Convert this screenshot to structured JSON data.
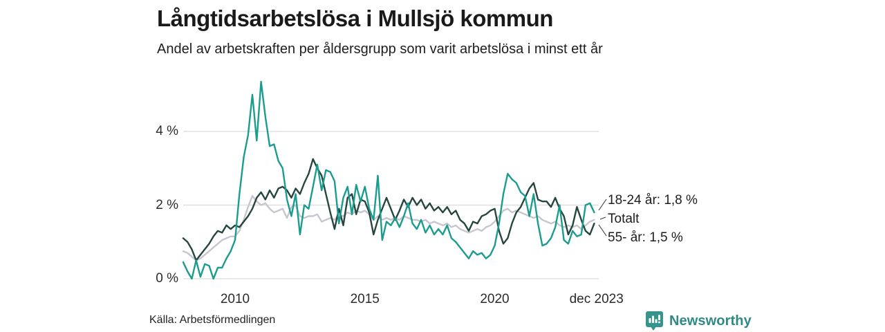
{
  "header": {
    "title": "Långtidsarbetslösa i Mullsjö kommun",
    "subtitle": "Andel av arbetskraften per åldersgrupp som varit arbetslösa i minst ett år"
  },
  "footer": {
    "source": "Källa: Arbetsförmedlingen",
    "brand": "Newsworthy"
  },
  "colors": {
    "series_18_24": "#1a9c8e",
    "series_55": "#26453e",
    "series_total": "#c7c6cf",
    "gridline": "#dadada",
    "brand_teal": "#2e8a85",
    "logo_teal": "#37948c"
  },
  "chart_data": {
    "type": "line",
    "title": "Långtidsarbetslösa i Mullsjö kommun",
    "subtitle": "Andel av arbetskraften per åldersgrupp som varit arbetslösa i minst ett år",
    "x_start": 2008.0,
    "x_step_years": 0.16667,
    "x_end_label": "dec 2023",
    "ylim": [
      0,
      5.6
    ],
    "grid": "horizontal",
    "x_axis": {
      "ticks": [
        {
          "label": "2010",
          "year": 2010
        },
        {
          "label": "2015",
          "year": 2015
        },
        {
          "label": "2020",
          "year": 2020
        },
        {
          "label": "dec 2023",
          "year": 2023.92
        }
      ]
    },
    "y_axis": {
      "ticks": [
        {
          "label": "0 %",
          "value": 0
        },
        {
          "label": "2 %",
          "value": 2
        },
        {
          "label": "4 %",
          "value": 4
        }
      ]
    },
    "series": [
      {
        "name": "18-24 år",
        "end_label": "18-24 år: 1,8 %",
        "end_value_text": "1,8 %",
        "color": "#1a9c8e",
        "values": [
          0.45,
          0.2,
          0.0,
          0.5,
          0.05,
          0.4,
          0.35,
          0.0,
          0.3,
          0.3,
          0.55,
          0.75,
          1.05,
          2.3,
          3.3,
          3.9,
          5.0,
          3.75,
          5.35,
          4.4,
          3.6,
          3.65,
          3.2,
          3.0,
          2.15,
          1.7,
          2.3,
          1.2,
          2.0,
          1.9,
          2.5,
          3.1,
          2.4,
          2.95,
          2.9,
          2.65,
          1.5,
          2.2,
          2.5,
          1.75,
          2.55,
          2.1,
          2.5,
          1.9,
          1.6,
          2.8,
          1.05,
          1.55,
          1.45,
          1.65,
          1.4,
          1.7,
          2.05,
          1.5,
          1.35,
          1.6,
          1.25,
          1.45,
          1.2,
          1.35,
          1.2,
          1.45,
          1.1,
          1.0,
          0.85,
          0.7,
          0.55,
          0.75,
          0.65,
          0.7,
          0.55,
          0.65,
          0.9,
          1.5,
          2.3,
          2.85,
          2.7,
          2.6,
          2.35,
          2.25,
          1.7,
          2.3,
          1.5,
          0.9,
          0.95,
          1.1,
          1.4,
          2.0,
          1.05,
          0.95,
          1.3,
          1.15,
          1.2,
          2.0,
          2.05,
          1.8
        ]
      },
      {
        "name": "Totalt",
        "end_label": "Totalt",
        "end_value_text": "",
        "color": "#c7c6cf",
        "values": [
          0.75,
          0.7,
          0.6,
          0.5,
          0.55,
          0.65,
          0.75,
          0.85,
          0.95,
          1.05,
          1.1,
          1.15,
          1.15,
          1.3,
          1.6,
          1.95,
          2.25,
          2.1,
          2.0,
          2.05,
          1.9,
          1.8,
          1.85,
          1.9,
          1.65,
          1.95,
          2.0,
          1.7,
          1.65,
          1.7,
          1.7,
          1.75,
          1.55,
          1.6,
          1.65,
          1.6,
          1.75,
          1.7,
          1.8,
          1.75,
          1.85,
          1.8,
          1.85,
          1.75,
          1.6,
          1.7,
          1.6,
          1.65,
          1.6,
          1.65,
          1.6,
          1.7,
          1.65,
          1.6,
          1.6,
          1.55,
          1.6,
          1.5,
          1.55,
          1.5,
          1.45,
          1.5,
          1.4,
          1.45,
          1.35,
          1.3,
          1.25,
          1.3,
          1.35,
          1.3,
          1.4,
          1.45,
          1.55,
          1.7,
          1.85,
          1.9,
          1.8,
          1.85,
          1.8,
          1.75,
          1.7,
          1.65,
          1.7,
          1.6,
          1.55,
          1.5,
          1.55,
          1.45,
          1.4,
          1.45,
          1.4,
          1.45,
          1.35,
          1.45,
          1.55,
          1.6
        ]
      },
      {
        "name": "55- år",
        "end_label": "55- år: 1,5 %",
        "end_value_text": "1,5 %",
        "color": "#26453e",
        "values": [
          1.1,
          1.0,
          0.8,
          0.5,
          0.65,
          0.8,
          0.95,
          1.15,
          1.3,
          1.25,
          1.45,
          1.35,
          1.45,
          1.4,
          1.55,
          1.7,
          1.9,
          2.2,
          2.35,
          2.15,
          2.4,
          2.2,
          2.45,
          2.5,
          2.4,
          2.2,
          2.45,
          2.3,
          2.6,
          2.85,
          3.25,
          3.0,
          2.8,
          2.3,
          1.8,
          1.35,
          1.9,
          1.45,
          2.2,
          2.3,
          1.75,
          2.15,
          2.1,
          1.8,
          1.2,
          1.6,
          1.9,
          2.2,
          1.9,
          1.6,
          1.85,
          2.15,
          1.95,
          2.2,
          2.0,
          2.15,
          1.9,
          2.05,
          1.85,
          1.95,
          1.8,
          1.95,
          1.75,
          1.85,
          1.6,
          1.5,
          1.3,
          1.55,
          1.5,
          1.7,
          1.75,
          1.85,
          1.9,
          1.3,
          0.95,
          1.1,
          1.5,
          1.8,
          1.95,
          2.2,
          2.45,
          2.6,
          2.15,
          2.1,
          2.1,
          1.95,
          2.2,
          1.9,
          1.7,
          1.2,
          1.45,
          1.95,
          1.6,
          1.3,
          1.2,
          1.5
        ]
      }
    ]
  }
}
